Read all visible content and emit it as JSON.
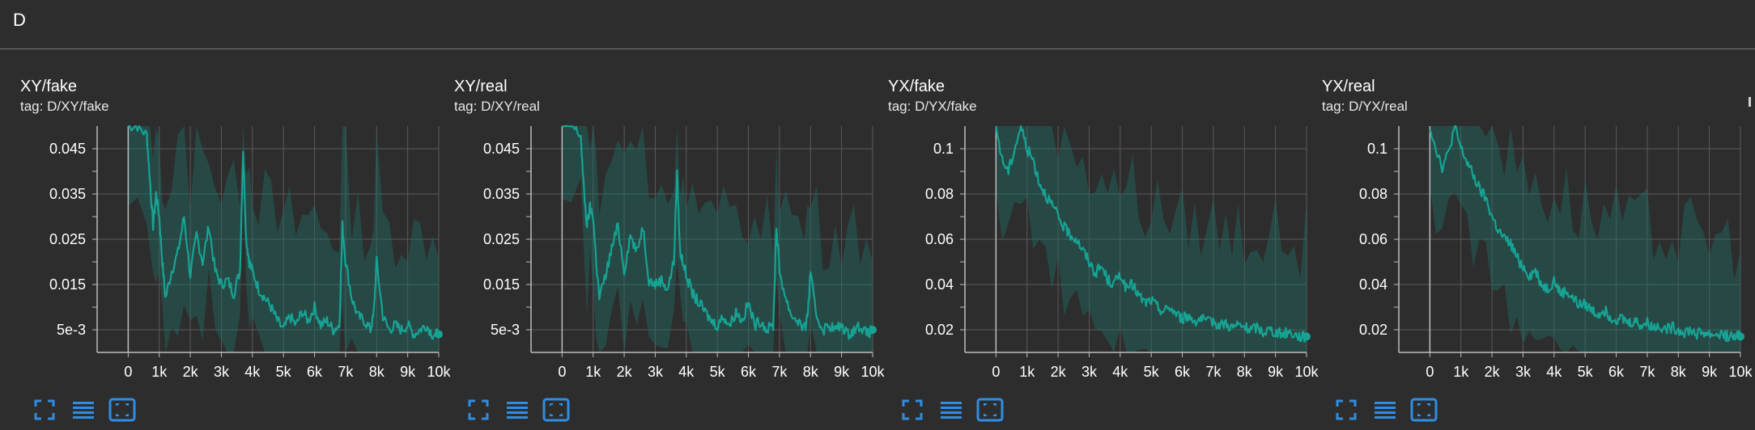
{
  "section": {
    "title": "D"
  },
  "colors": {
    "background": "#2d2d2d",
    "line": "#17a394",
    "band": "#1f6d64",
    "grid": "#5a5a5a",
    "axis": "#bdbdbd",
    "icon": "#2f8de4"
  },
  "controls": {
    "fullscreen_icon": "fullscreen-icon",
    "data_table_icon": "data-table-icon",
    "fit_domain_icon": "fit-domain-icon"
  },
  "cards": [
    {
      "title": "XY/fake",
      "tag": "tag: D/XY/fake",
      "chart_data": {
        "type": "line",
        "title": "XY/fake",
        "xlabel": "",
        "ylabel": "",
        "xlim": [
          -1000,
          10000
        ],
        "ylim": [
          0,
          0.05
        ],
        "x_ticks": [
          0,
          1000,
          2000,
          3000,
          4000,
          5000,
          6000,
          7000,
          8000,
          9000,
          10000
        ],
        "x_tick_labels": [
          "0",
          "1k",
          "2k",
          "3k",
          "4k",
          "5k",
          "6k",
          "7k",
          "8k",
          "9k",
          "10k"
        ],
        "y_ticks": [
          0.005,
          0.015,
          0.025,
          0.035,
          0.045
        ],
        "y_tick_labels": [
          "5e-3",
          "0.015",
          "0.025",
          "0.035",
          "0.045"
        ],
        "grid": true,
        "series": [
          {
            "x": [
              0,
              300,
              600,
              700,
              800,
              900,
              1000,
              1100,
              1200,
              1400,
              1600,
              1800,
              2000,
              2200,
              2400,
              2600,
              2800,
              3000,
              3200,
              3400,
              3600,
              3700,
              3800,
              3900,
              4000,
              4200,
              4400,
              4600,
              4800,
              5000,
              5200,
              5400,
              5600,
              5800,
              6000,
              6200,
              6400,
              6600,
              6800,
              6900,
              7000,
              7200,
              7400,
              7600,
              7800,
              7900,
              8000,
              8200,
              8400,
              8600,
              8800,
              9000,
              9200,
              9400,
              9600,
              9800,
              10000
            ],
            "y": [
              0.05,
              0.05,
              0.048,
              0.038,
              0.028,
              0.035,
              0.03,
              0.02,
              0.012,
              0.018,
              0.022,
              0.03,
              0.017,
              0.026,
              0.02,
              0.028,
              0.018,
              0.015,
              0.016,
              0.013,
              0.018,
              0.045,
              0.025,
              0.02,
              0.018,
              0.014,
              0.012,
              0.01,
              0.007,
              0.005,
              0.008,
              0.006,
              0.009,
              0.007,
              0.01,
              0.006,
              0.007,
              0.005,
              0.006,
              0.028,
              0.02,
              0.012,
              0.008,
              0.007,
              0.005,
              0.008,
              0.02,
              0.008,
              0.005,
              0.006,
              0.005,
              0.006,
              0.004,
              0.005,
              0.006,
              0.004,
              0.004
            ]
          }
        ]
      }
    },
    {
      "title": "XY/real",
      "tag": "tag: D/XY/real",
      "chart_data": {
        "type": "line",
        "title": "XY/real",
        "xlabel": "",
        "ylabel": "",
        "xlim": [
          -1000,
          10000
        ],
        "ylim": [
          0,
          0.05
        ],
        "x_ticks": [
          0,
          1000,
          2000,
          3000,
          4000,
          5000,
          6000,
          7000,
          8000,
          9000,
          10000
        ],
        "x_tick_labels": [
          "0",
          "1k",
          "2k",
          "3k",
          "4k",
          "5k",
          "6k",
          "7k",
          "8k",
          "9k",
          "10k"
        ],
        "y_ticks": [
          0.005,
          0.015,
          0.025,
          0.035,
          0.045
        ],
        "y_tick_labels": [
          "5e-3",
          "0.015",
          "0.025",
          "0.035",
          "0.045"
        ],
        "grid": true,
        "series": [
          {
            "x": [
              0,
              300,
              600,
              700,
              800,
              900,
              1000,
              1100,
              1200,
              1400,
              1600,
              1800,
              2000,
              2200,
              2400,
              2600,
              2800,
              3000,
              3200,
              3400,
              3600,
              3700,
              3800,
              3900,
              4000,
              4200,
              4400,
              4600,
              4800,
              5000,
              5200,
              5400,
              5600,
              5800,
              6000,
              6200,
              6400,
              6600,
              6800,
              6900,
              7000,
              7200,
              7400,
              7600,
              7800,
              7900,
              8000,
              8200,
              8400,
              8600,
              8800,
              9000,
              9200,
              9400,
              9600,
              9800,
              10000
            ],
            "y": [
              0.05,
              0.05,
              0.048,
              0.036,
              0.028,
              0.032,
              0.03,
              0.02,
              0.012,
              0.017,
              0.023,
              0.028,
              0.018,
              0.026,
              0.022,
              0.028,
              0.016,
              0.015,
              0.016,
              0.014,
              0.02,
              0.04,
              0.022,
              0.02,
              0.017,
              0.013,
              0.011,
              0.009,
              0.007,
              0.006,
              0.008,
              0.006,
              0.009,
              0.007,
              0.011,
              0.006,
              0.007,
              0.005,
              0.006,
              0.028,
              0.018,
              0.012,
              0.008,
              0.007,
              0.005,
              0.008,
              0.017,
              0.008,
              0.005,
              0.006,
              0.005,
              0.006,
              0.004,
              0.005,
              0.006,
              0.004,
              0.005
            ]
          }
        ]
      }
    },
    {
      "title": "YX/fake",
      "tag": "tag: D/YX/fake",
      "chart_data": {
        "type": "line",
        "title": "YX/fake",
        "xlabel": "",
        "ylabel": "",
        "xlim": [
          -1000,
          10000
        ],
        "ylim": [
          0.01,
          0.11
        ],
        "x_ticks": [
          0,
          1000,
          2000,
          3000,
          4000,
          5000,
          6000,
          7000,
          8000,
          9000,
          10000
        ],
        "x_tick_labels": [
          "0",
          "1k",
          "2k",
          "3k",
          "4k",
          "5k",
          "6k",
          "7k",
          "8k",
          "9k",
          "10k"
        ],
        "y_ticks": [
          0.02,
          0.04,
          0.06,
          0.08,
          0.1
        ],
        "y_tick_labels": [
          "0.02",
          "0.04",
          "0.06",
          "0.08",
          "0.1"
        ],
        "grid": true,
        "series": [
          {
            "x": [
              0,
              200,
              400,
              600,
              800,
              1000,
              1200,
              1400,
              1600,
              1800,
              2000,
              2200,
              2400,
              2600,
              2800,
              3000,
              3200,
              3400,
              3600,
              3800,
              4000,
              4200,
              4400,
              4600,
              4800,
              5000,
              5200,
              5400,
              5600,
              5800,
              6000,
              6200,
              6400,
              6600,
              6800,
              7000,
              7200,
              7400,
              7600,
              7800,
              8000,
              8200,
              8400,
              8600,
              8800,
              9000,
              9200,
              9400,
              9600,
              9800,
              10000
            ],
            "y": [
              0.11,
              0.095,
              0.09,
              0.1,
              0.11,
              0.1,
              0.095,
              0.085,
              0.08,
              0.075,
              0.07,
              0.065,
              0.062,
              0.06,
              0.055,
              0.05,
              0.045,
              0.048,
              0.042,
              0.04,
              0.045,
              0.038,
              0.04,
              0.035,
              0.032,
              0.033,
              0.03,
              0.028,
              0.03,
              0.027,
              0.025,
              0.026,
              0.024,
              0.025,
              0.023,
              0.024,
              0.022,
              0.023,
              0.021,
              0.022,
              0.021,
              0.02,
              0.021,
              0.019,
              0.02,
              0.019,
              0.018,
              0.019,
              0.018,
              0.017,
              0.017
            ]
          }
        ]
      }
    },
    {
      "title": "YX/real",
      "tag": "tag: D/YX/real",
      "chart_data": {
        "type": "line",
        "title": "YX/real",
        "xlabel": "",
        "ylabel": "",
        "xlim": [
          -1000,
          10000
        ],
        "ylim": [
          0.01,
          0.11
        ],
        "x_ticks": [
          0,
          1000,
          2000,
          3000,
          4000,
          5000,
          6000,
          7000,
          8000,
          9000,
          10000
        ],
        "x_tick_labels": [
          "0",
          "1k",
          "2k",
          "3k",
          "4k",
          "5k",
          "6k",
          "7k",
          "8k",
          "9k",
          "10k"
        ],
        "y_ticks": [
          0.02,
          0.04,
          0.06,
          0.08,
          0.1
        ],
        "y_tick_labels": [
          "0.02",
          "0.04",
          "0.06",
          "0.08",
          "0.1"
        ],
        "grid": true,
        "series": [
          {
            "x": [
              0,
              200,
              400,
              600,
              800,
              1000,
              1200,
              1400,
              1600,
              1800,
              2000,
              2200,
              2400,
              2600,
              2800,
              3000,
              3200,
              3400,
              3600,
              3800,
              4000,
              4200,
              4400,
              4600,
              4800,
              5000,
              5200,
              5400,
              5600,
              5800,
              6000,
              6200,
              6400,
              6600,
              6800,
              7000,
              7200,
              7400,
              7600,
              7800,
              8000,
              8200,
              8400,
              8600,
              8800,
              9000,
              9200,
              9400,
              9600,
              9800,
              10000
            ],
            "y": [
              0.11,
              0.1,
              0.092,
              0.098,
              0.11,
              0.1,
              0.094,
              0.088,
              0.082,
              0.078,
              0.07,
              0.064,
              0.06,
              0.058,
              0.052,
              0.048,
              0.044,
              0.046,
              0.04,
              0.038,
              0.042,
              0.036,
              0.037,
              0.034,
              0.031,
              0.031,
              0.029,
              0.027,
              0.029,
              0.026,
              0.025,
              0.025,
              0.023,
              0.024,
              0.022,
              0.023,
              0.021,
              0.022,
              0.02,
              0.021,
              0.02,
              0.019,
              0.02,
              0.018,
              0.019,
              0.018,
              0.018,
              0.018,
              0.017,
              0.017,
              0.017
            ]
          }
        ]
      }
    }
  ]
}
